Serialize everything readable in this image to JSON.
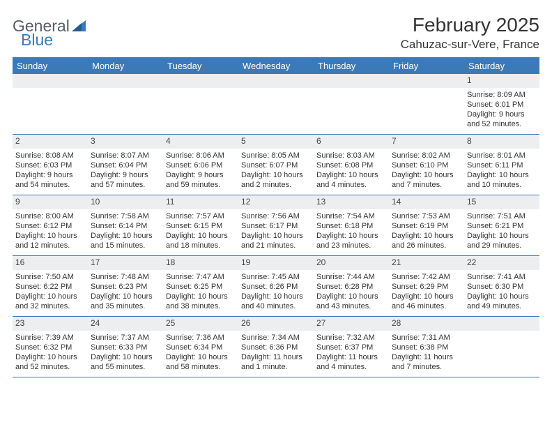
{
  "logo": {
    "text_a": "General",
    "text_b": "Blue"
  },
  "title": "February 2025",
  "subtitle": "Cahuzac-sur-Vere, France",
  "colors": {
    "brand": "#3a7ab8",
    "header_bg": "#3a7ab8",
    "header_text": "#ffffff",
    "daynum_bg": "#eceeef",
    "border": "#3a7ab8",
    "text": "#333333",
    "background": "#ffffff"
  },
  "day_names": [
    "Sunday",
    "Monday",
    "Tuesday",
    "Wednesday",
    "Thursday",
    "Friday",
    "Saturday"
  ],
  "weeks": [
    [
      {
        "day": "",
        "lines": [
          "",
          "",
          "",
          ""
        ]
      },
      {
        "day": "",
        "lines": [
          "",
          "",
          "",
          ""
        ]
      },
      {
        "day": "",
        "lines": [
          "",
          "",
          "",
          ""
        ]
      },
      {
        "day": "",
        "lines": [
          "",
          "",
          "",
          ""
        ]
      },
      {
        "day": "",
        "lines": [
          "",
          "",
          "",
          ""
        ]
      },
      {
        "day": "",
        "lines": [
          "",
          "",
          "",
          ""
        ]
      },
      {
        "day": "1",
        "lines": [
          "Sunrise: 8:09 AM",
          "Sunset: 6:01 PM",
          "Daylight: 9 hours",
          "and 52 minutes."
        ]
      }
    ],
    [
      {
        "day": "2",
        "lines": [
          "Sunrise: 8:08 AM",
          "Sunset: 6:03 PM",
          "Daylight: 9 hours",
          "and 54 minutes."
        ]
      },
      {
        "day": "3",
        "lines": [
          "Sunrise: 8:07 AM",
          "Sunset: 6:04 PM",
          "Daylight: 9 hours",
          "and 57 minutes."
        ]
      },
      {
        "day": "4",
        "lines": [
          "Sunrise: 8:06 AM",
          "Sunset: 6:06 PM",
          "Daylight: 9 hours",
          "and 59 minutes."
        ]
      },
      {
        "day": "5",
        "lines": [
          "Sunrise: 8:05 AM",
          "Sunset: 6:07 PM",
          "Daylight: 10 hours",
          "and 2 minutes."
        ]
      },
      {
        "day": "6",
        "lines": [
          "Sunrise: 8:03 AM",
          "Sunset: 6:08 PM",
          "Daylight: 10 hours",
          "and 4 minutes."
        ]
      },
      {
        "day": "7",
        "lines": [
          "Sunrise: 8:02 AM",
          "Sunset: 6:10 PM",
          "Daylight: 10 hours",
          "and 7 minutes."
        ]
      },
      {
        "day": "8",
        "lines": [
          "Sunrise: 8:01 AM",
          "Sunset: 6:11 PM",
          "Daylight: 10 hours",
          "and 10 minutes."
        ]
      }
    ],
    [
      {
        "day": "9",
        "lines": [
          "Sunrise: 8:00 AM",
          "Sunset: 6:12 PM",
          "Daylight: 10 hours",
          "and 12 minutes."
        ]
      },
      {
        "day": "10",
        "lines": [
          "Sunrise: 7:58 AM",
          "Sunset: 6:14 PM",
          "Daylight: 10 hours",
          "and 15 minutes."
        ]
      },
      {
        "day": "11",
        "lines": [
          "Sunrise: 7:57 AM",
          "Sunset: 6:15 PM",
          "Daylight: 10 hours",
          "and 18 minutes."
        ]
      },
      {
        "day": "12",
        "lines": [
          "Sunrise: 7:56 AM",
          "Sunset: 6:17 PM",
          "Daylight: 10 hours",
          "and 21 minutes."
        ]
      },
      {
        "day": "13",
        "lines": [
          "Sunrise: 7:54 AM",
          "Sunset: 6:18 PM",
          "Daylight: 10 hours",
          "and 23 minutes."
        ]
      },
      {
        "day": "14",
        "lines": [
          "Sunrise: 7:53 AM",
          "Sunset: 6:19 PM",
          "Daylight: 10 hours",
          "and 26 minutes."
        ]
      },
      {
        "day": "15",
        "lines": [
          "Sunrise: 7:51 AM",
          "Sunset: 6:21 PM",
          "Daylight: 10 hours",
          "and 29 minutes."
        ]
      }
    ],
    [
      {
        "day": "16",
        "lines": [
          "Sunrise: 7:50 AM",
          "Sunset: 6:22 PM",
          "Daylight: 10 hours",
          "and 32 minutes."
        ]
      },
      {
        "day": "17",
        "lines": [
          "Sunrise: 7:48 AM",
          "Sunset: 6:23 PM",
          "Daylight: 10 hours",
          "and 35 minutes."
        ]
      },
      {
        "day": "18",
        "lines": [
          "Sunrise: 7:47 AM",
          "Sunset: 6:25 PM",
          "Daylight: 10 hours",
          "and 38 minutes."
        ]
      },
      {
        "day": "19",
        "lines": [
          "Sunrise: 7:45 AM",
          "Sunset: 6:26 PM",
          "Daylight: 10 hours",
          "and 40 minutes."
        ]
      },
      {
        "day": "20",
        "lines": [
          "Sunrise: 7:44 AM",
          "Sunset: 6:28 PM",
          "Daylight: 10 hours",
          "and 43 minutes."
        ]
      },
      {
        "day": "21",
        "lines": [
          "Sunrise: 7:42 AM",
          "Sunset: 6:29 PM",
          "Daylight: 10 hours",
          "and 46 minutes."
        ]
      },
      {
        "day": "22",
        "lines": [
          "Sunrise: 7:41 AM",
          "Sunset: 6:30 PM",
          "Daylight: 10 hours",
          "and 49 minutes."
        ]
      }
    ],
    [
      {
        "day": "23",
        "lines": [
          "Sunrise: 7:39 AM",
          "Sunset: 6:32 PM",
          "Daylight: 10 hours",
          "and 52 minutes."
        ]
      },
      {
        "day": "24",
        "lines": [
          "Sunrise: 7:37 AM",
          "Sunset: 6:33 PM",
          "Daylight: 10 hours",
          "and 55 minutes."
        ]
      },
      {
        "day": "25",
        "lines": [
          "Sunrise: 7:36 AM",
          "Sunset: 6:34 PM",
          "Daylight: 10 hours",
          "and 58 minutes."
        ]
      },
      {
        "day": "26",
        "lines": [
          "Sunrise: 7:34 AM",
          "Sunset: 6:36 PM",
          "Daylight: 11 hours",
          "and 1 minute."
        ]
      },
      {
        "day": "27",
        "lines": [
          "Sunrise: 7:32 AM",
          "Sunset: 6:37 PM",
          "Daylight: 11 hours",
          "and 4 minutes."
        ]
      },
      {
        "day": "28",
        "lines": [
          "Sunrise: 7:31 AM",
          "Sunset: 6:38 PM",
          "Daylight: 11 hours",
          "and 7 minutes."
        ]
      },
      {
        "day": "",
        "lines": [
          "",
          "",
          "",
          ""
        ]
      }
    ]
  ]
}
